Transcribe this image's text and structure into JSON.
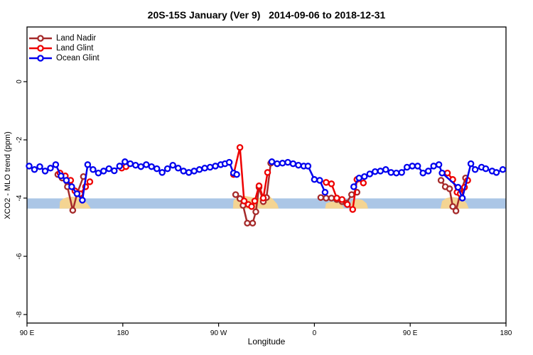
{
  "chart_data": {
    "type": "line",
    "title": "20S-15S January (Ver 9)   2014-09-06 to 2018-12-31",
    "xlabel": "Longitude",
    "ylabel": "XCO2 - MLO trend (ppm)",
    "grid": false,
    "legend_position": "top-left",
    "x_axis": {
      "range_deg": [
        0,
        450
      ],
      "ticks": [
        {
          "label": "90 E",
          "deg": 0
        },
        {
          "label": "180",
          "deg": 90
        },
        {
          "label": "90 W",
          "deg": 180
        },
        {
          "label": "0",
          "deg": 270
        },
        {
          "label": "90 E",
          "deg": 360
        },
        {
          "label": "180",
          "deg": 450
        }
      ]
    },
    "y_axis": {
      "ticks": [
        0,
        -2,
        -4,
        -6,
        -8
      ],
      "range": [
        -8.3,
        1.9
      ]
    },
    "legend": [
      {
        "label": "Land Nadir",
        "color": "#A52A2A"
      },
      {
        "label": "Land Glint",
        "color": "#EE0000"
      },
      {
        "label": "Ocean Glint",
        "color": "#0000EE"
      }
    ],
    "reference_band": {
      "color": "#ABC6E6",
      "value_top": -4.01,
      "value_bottom": -4.36
    },
    "terrain_overlays": {
      "color": "#F4D492",
      "polygons": [
        [
          [
            30.5,
            -4.36
          ],
          [
            31,
            -4.12
          ],
          [
            34,
            -4.02
          ],
          [
            38,
            -3.97
          ],
          [
            43,
            -3.95
          ],
          [
            48,
            -3.98
          ],
          [
            53,
            -4.06
          ],
          [
            57,
            -4.2
          ],
          [
            60,
            -4.36
          ]
        ],
        [
          [
            193.5,
            -4.36
          ],
          [
            194,
            -4.08
          ],
          [
            198,
            -3.95
          ],
          [
            204,
            -3.92
          ],
          [
            210,
            -3.96
          ],
          [
            216,
            -4.0
          ],
          [
            222,
            -3.97
          ],
          [
            228,
            -3.94
          ],
          [
            231,
            -4.04
          ],
          [
            235,
            -4.2
          ],
          [
            236.5,
            -4.36
          ]
        ],
        [
          [
            280,
            -4.36
          ],
          [
            281,
            -4.18
          ],
          [
            286,
            -4.12
          ],
          [
            292,
            -4.15
          ],
          [
            296,
            -4.24
          ],
          [
            298,
            -4.36
          ]
        ],
        [
          [
            304,
            -4.36
          ],
          [
            305,
            -4.1
          ],
          [
            310,
            -4.03
          ],
          [
            315,
            -4.06
          ],
          [
            319,
            -4.18
          ],
          [
            320.5,
            -4.36
          ]
        ],
        [
          [
            388.5,
            -4.36
          ],
          [
            390,
            -4.1
          ],
          [
            394,
            -4.0
          ],
          [
            399,
            -3.96
          ],
          [
            405,
            -3.99
          ],
          [
            410,
            -4.06
          ],
          [
            413,
            -4.18
          ],
          [
            415,
            -4.36
          ]
        ]
      ]
    },
    "series": [
      {
        "name": "Land Nadir",
        "color": "#A52A2A",
        "segments": [
          [
            [
              29,
              -3.19
            ],
            [
              33,
              -3.31
            ],
            [
              38,
              -3.61
            ],
            [
              43,
              -4.42
            ],
            [
              47,
              -3.85
            ],
            [
              53,
              -3.26
            ]
          ],
          [
            [
              196,
              -3.88
            ],
            [
              200,
              -4.02
            ],
            [
              203,
              -4.25
            ],
            [
              207,
              -4.86
            ],
            [
              212,
              -4.86
            ],
            [
              215,
              -4.47
            ],
            [
              218,
              -3.63
            ],
            [
              222,
              -4.12
            ],
            [
              225,
              -3.98
            ],
            [
              229,
              -2.8
            ]
          ],
          [
            [
              276,
              -3.98
            ],
            [
              281,
              -4.0
            ],
            [
              286,
              -4.0
            ],
            [
              291,
              -4.05
            ],
            [
              296,
              -4.12
            ],
            [
              300,
              -4.17
            ],
            [
              305,
              -3.88
            ],
            [
              310,
              -3.8
            ]
          ],
          [
            [
              389,
              -3.39
            ],
            [
              393,
              -3.61
            ],
            [
              397,
              -3.68
            ],
            [
              400,
              -4.29
            ],
            [
              403,
              -4.44
            ],
            [
              407,
              -3.85
            ],
            [
              412,
              -3.31
            ]
          ]
        ]
      },
      {
        "name": "Land Glint",
        "color": "#EE0000",
        "segments": [
          [
            [
              31,
              -3.14
            ],
            [
              36,
              -3.24
            ],
            [
              41,
              -3.39
            ],
            [
              45,
              -3.75
            ],
            [
              50,
              -3.85
            ],
            [
              55,
              -3.61
            ],
            [
              59,
              -3.44
            ]
          ],
          [
            [
              89,
              -2.97
            ],
            [
              93,
              -2.92
            ]
          ],
          [
            [
              194,
              -3.19
            ],
            [
              200,
              -2.26
            ],
            [
              204,
              -4.1
            ],
            [
              208,
              -4.22
            ],
            [
              211,
              -4.29
            ],
            [
              214,
              -4.1
            ],
            [
              218,
              -3.58
            ],
            [
              222,
              -4.0
            ],
            [
              226,
              -3.12
            ]
          ],
          [
            [
              281,
              -3.46
            ],
            [
              286,
              -3.51
            ],
            [
              291,
              -4.0
            ],
            [
              296,
              -4.05
            ],
            [
              301,
              -4.22
            ],
            [
              306,
              -4.39
            ],
            [
              310,
              -3.36
            ],
            [
              316,
              -3.48
            ]
          ],
          [
            [
              395,
              -3.14
            ],
            [
              400,
              -3.36
            ],
            [
              404,
              -3.8
            ],
            [
              407,
              -3.85
            ],
            [
              411,
              -3.63
            ],
            [
              414,
              -3.39
            ]
          ]
        ]
      },
      {
        "name": "Ocean Glint",
        "color": "#0000EE",
        "segments": [
          [
            [
              2,
              -2.9
            ],
            [
              7,
              -3.02
            ],
            [
              12,
              -2.92
            ],
            [
              17,
              -3.07
            ],
            [
              22,
              -2.97
            ],
            [
              27,
              -2.85
            ],
            [
              32,
              -3.24
            ],
            [
              37,
              -3.39
            ],
            [
              42,
              -3.61
            ],
            [
              47,
              -3.85
            ],
            [
              52,
              -4.07
            ],
            [
              57,
              -2.85
            ],
            [
              62,
              -3.02
            ],
            [
              67,
              -3.14
            ],
            [
              72,
              -3.07
            ],
            [
              77,
              -2.99
            ],
            [
              82,
              -3.06
            ],
            [
              87,
              -2.9
            ],
            [
              92,
              -2.75
            ],
            [
              97,
              -2.82
            ],
            [
              102,
              -2.87
            ],
            [
              107,
              -2.92
            ],
            [
              112,
              -2.85
            ],
            [
              117,
              -2.92
            ],
            [
              122,
              -2.99
            ],
            [
              127,
              -3.12
            ],
            [
              132,
              -2.99
            ],
            [
              137,
              -2.87
            ],
            [
              142,
              -2.97
            ],
            [
              147,
              -3.07
            ],
            [
              152,
              -3.12
            ],
            [
              157,
              -3.07
            ],
            [
              162,
              -3.02
            ],
            [
              167,
              -2.97
            ],
            [
              172,
              -2.94
            ],
            [
              177,
              -2.9
            ],
            [
              182,
              -2.85
            ],
            [
              186,
              -2.82
            ],
            [
              190,
              -2.77
            ],
            [
              194,
              -3.14
            ],
            [
              197,
              -3.19
            ]
          ],
          [
            [
              230,
              -2.75
            ],
            [
              235,
              -2.82
            ],
            [
              240,
              -2.8
            ],
            [
              245,
              -2.77
            ],
            [
              250,
              -2.82
            ],
            [
              255,
              -2.87
            ],
            [
              260,
              -2.9
            ],
            [
              264,
              -2.9
            ],
            [
              270,
              -3.36
            ],
            [
              275,
              -3.39
            ],
            [
              280,
              -3.8
            ]
          ],
          [
            [
              307,
              -3.61
            ],
            [
              312,
              -3.31
            ],
            [
              317,
              -3.26
            ],
            [
              322,
              -3.17
            ],
            [
              327,
              -3.09
            ],
            [
              332,
              -3.07
            ],
            [
              337,
              -3.02
            ],
            [
              342,
              -3.12
            ],
            [
              347,
              -3.14
            ],
            [
              352,
              -3.12
            ],
            [
              357,
              -2.94
            ],
            [
              362,
              -2.9
            ],
            [
              367,
              -2.9
            ],
            [
              372,
              -3.14
            ],
            [
              377,
              -3.07
            ],
            [
              382,
              -2.9
            ],
            [
              387,
              -2.85
            ],
            [
              390,
              -3.14
            ],
            [
              405,
              -3.63
            ],
            [
              409,
              -4.0
            ],
            [
              417,
              -2.82
            ],
            [
              421,
              -3.02
            ],
            [
              427,
              -2.94
            ],
            [
              431,
              -2.99
            ],
            [
              437,
              -3.07
            ],
            [
              441,
              -3.12
            ],
            [
              447,
              -3.02
            ]
          ]
        ]
      }
    ]
  }
}
